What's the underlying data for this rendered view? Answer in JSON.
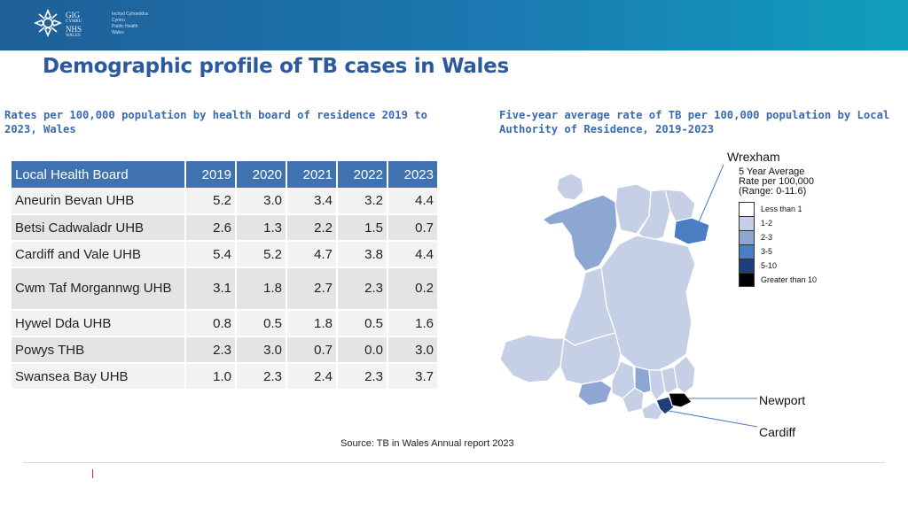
{
  "header": {
    "logo_lines": [
      "GIG",
      "CYMRU",
      "NHS",
      "WALES"
    ],
    "logo_small_lines": [
      "Iechyd Cyhoeddus",
      "Cymru",
      "Public Health",
      "Wales"
    ]
  },
  "title": "Demographic profile of TB cases in Wales",
  "left_subtitle": "Rates per 100,000 population by health board of residence 2019 to 2023, Wales",
  "right_subtitle": "Five-year average rate of TB per 100,000 population by Local Authority of Residence, 2019-2023",
  "table": {
    "headers": [
      "Local Health Board",
      "2019",
      "2020",
      "2021",
      "2022",
      "2023"
    ],
    "rows": [
      [
        "Aneurin Bevan UHB",
        "5.2",
        "3.0",
        "3.4",
        "3.2",
        "4.4"
      ],
      [
        "Betsi Cadwaladr UHB",
        "2.6",
        "1.3",
        "2.2",
        "1.5",
        "0.7"
      ],
      [
        "Cardiff and Vale UHB",
        "5.4",
        "5.2",
        "4.7",
        "3.8",
        "4.4"
      ],
      [
        "Cwm Taf Morgannwg UHB",
        "3.1",
        "1.8",
        "2.7",
        "2.3",
        "0.2"
      ],
      [
        "Hywel Dda UHB",
        "0.8",
        "0.5",
        "1.8",
        "0.5",
        "1.6"
      ],
      [
        "Powys THB",
        "2.3",
        "3.0",
        "0.7",
        "0.0",
        "3.0"
      ],
      [
        "Swansea Bay UHB",
        "1.0",
        "2.3",
        "2.4",
        "2.3",
        "3.7"
      ]
    ]
  },
  "map": {
    "labels": {
      "wrexham": "Wrexham",
      "newport": "Newport",
      "cardiff": "Cardiff"
    },
    "legend": {
      "title_lines": [
        "5 Year Average",
        "Rate per 100,000",
        "(Range: 0-11.6)"
      ],
      "items": [
        {
          "label": "Less than 1",
          "color": "#ffffff"
        },
        {
          "label": "1-2",
          "color": "#c5cfe6"
        },
        {
          "label": "2-3",
          "color": "#8ea7d2"
        },
        {
          "label": "3-5",
          "color": "#4a7ec2"
        },
        {
          "label": "5-10",
          "color": "#1f3f7a"
        },
        {
          "label": "Greater than 10",
          "color": "#000000"
        }
      ]
    }
  },
  "source": "Source: TB in Wales Annual report 2023",
  "colors": {
    "title": "#2a5a9f",
    "header_fill": "#3f72af",
    "accent": "#d9263a"
  }
}
